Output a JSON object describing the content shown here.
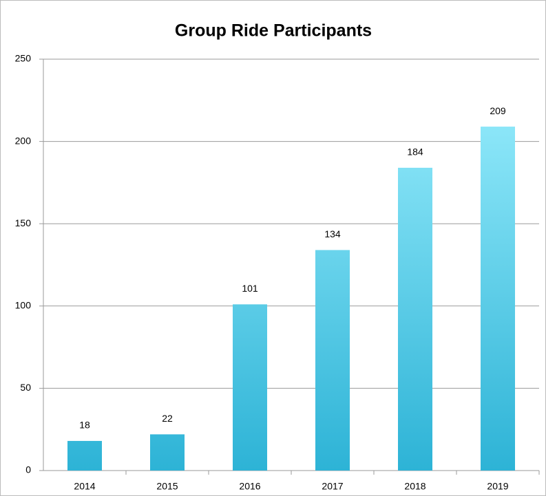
{
  "chart_data": {
    "type": "bar",
    "title": "Group Ride Participants",
    "categories": [
      "2014",
      "2015",
      "2016",
      "2017",
      "2018",
      "2019"
    ],
    "values": [
      18,
      22,
      101,
      134,
      184,
      209
    ],
    "gradient_colors": [
      "#9ef0ff",
      "#2db3d6"
    ],
    "ylim": [
      0,
      250
    ],
    "yticks": [
      0,
      50,
      100,
      150,
      200,
      250
    ],
    "grid": true
  }
}
